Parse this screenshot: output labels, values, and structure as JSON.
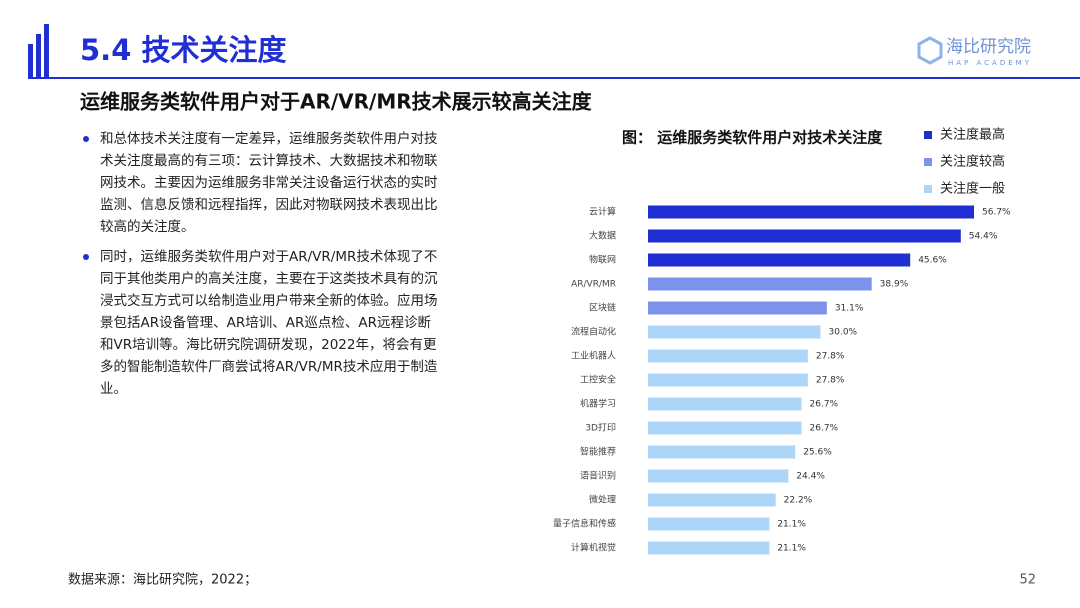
{
  "header": {
    "section_title": "5.4 技术关注度",
    "logo_name": "海比研究院",
    "logo_subtitle": "HAP ACADEMY",
    "subtitle": "运维服务类软件用户对于AR/VR/MR技术展示较高关注度"
  },
  "body": {
    "bullets": [
      "和总体技术关注度有一定差异，运维服务类软件用户对技术关注度最高的有三项：云计算技术、大数据技术和物联网技术。主要因为运维服务非常关注设备运行状态的实时监测、信息反馈和远程指挥，因此对物联网技术表现出比较高的关注度。",
      "同时，运维服务类软件用户对于AR/VR/MR技术体现了不同于其他类用户的高关注度，主要在于这类技术具有的沉浸式交互方式可以给制造业用户带来全新的体验。应用场景包括AR设备管理、AR培训、AR巡点检、AR远程诊断和VR培训等。海比研究院调研发现，2022年，将会有更多的智能制造软件厂商尝试将AR/VR/MR技术应用于制造业。"
    ]
  },
  "chart_data": {
    "type": "bar",
    "orientation": "horizontal",
    "title": "图： 运维服务类软件用户对技术关注度",
    "categories": [
      "云计算",
      "大数据",
      "物联网",
      "AR/VR/MR",
      "区块链",
      "流程自动化",
      "工业机器人",
      "工控安全",
      "机器学习",
      "3D打印",
      "智能推荐",
      "语音识别",
      "微处理",
      "量子信息和传感",
      "计算机视觉"
    ],
    "series": [
      {
        "name": "关注度最高",
        "color": "#1f2fd3",
        "values": [
          56.7,
          54.4,
          45.6,
          null,
          null,
          null,
          null,
          null,
          null,
          null,
          null,
          null,
          null,
          null,
          null
        ],
        "value_labels": [
          "56.7%",
          "54.4%",
          "45.6%",
          null,
          null,
          null,
          null,
          null,
          null,
          null,
          null,
          null,
          null,
          null,
          null
        ]
      },
      {
        "name": "关注度较高",
        "color": "#7d92ea",
        "values": [
          null,
          null,
          null,
          38.9,
          31.1,
          null,
          null,
          null,
          null,
          null,
          null,
          null,
          null,
          null,
          null
        ],
        "value_labels": [
          null,
          null,
          null,
          "38.9%",
          "31.1%",
          null,
          null,
          null,
          null,
          null,
          null,
          null,
          null,
          null,
          null
        ]
      },
      {
        "name": "关注度一般",
        "color": "#acd5f7",
        "values": [
          null,
          null,
          null,
          null,
          null,
          30.0,
          27.8,
          27.8,
          26.7,
          26.7,
          25.6,
          24.4,
          22.2,
          21.1,
          21.1
        ],
        "value_labels": [
          null,
          null,
          null,
          null,
          null,
          "30.0%",
          "27.8%",
          "27.8%",
          "26.7%",
          "26.7%",
          "25.6%",
          "24.4%",
          "22.2%",
          "21.1%",
          "21.1%"
        ]
      }
    ],
    "legend_position": "top-right"
  },
  "footer": {
    "source": "数据来源：海比研究院，2022；",
    "page_number": "52"
  }
}
